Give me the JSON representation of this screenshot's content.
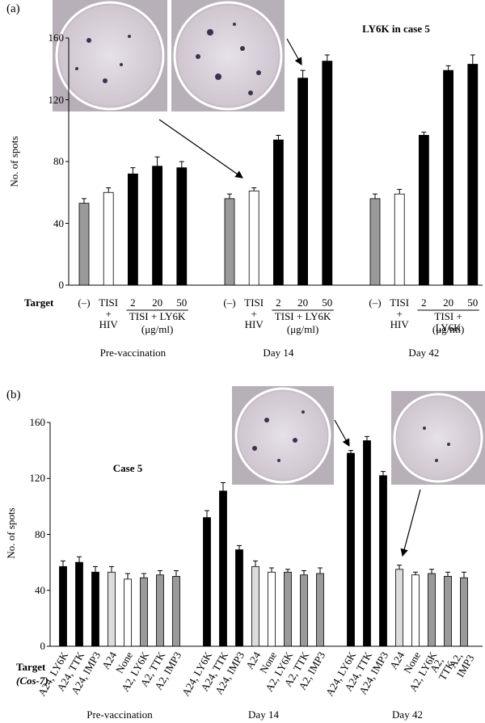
{
  "chart_data": [
    {
      "type": "bar",
      "panel_label": "(a)",
      "annotation": "LY6K in case 5",
      "y_label": "No. of spots",
      "x_label": "Target",
      "categories": [
        "(–)",
        "TISI\n+\nHIV",
        "2",
        "20",
        "50"
      ],
      "category_group_label": "TISI + LY6K",
      "category_unit": "(μg/ml)",
      "colors": [
        "#9a9a9a",
        "#ffffff",
        "#000000",
        "#000000",
        "#000000"
      ],
      "groups": [
        {
          "name": "Pre-vaccination",
          "values": [
            53,
            60,
            72,
            77,
            76
          ],
          "errors": [
            3,
            3,
            4,
            6,
            4
          ]
        },
        {
          "name": "Day 14",
          "values": [
            56,
            61,
            94,
            134,
            145
          ],
          "errors": [
            3,
            2,
            3,
            5,
            4
          ]
        },
        {
          "name": "Day 42",
          "values": [
            56,
            59,
            97,
            139,
            143
          ],
          "errors": [
            3,
            3,
            2,
            3,
            6
          ]
        }
      ],
      "ylim": [
        0,
        160
      ],
      "yticks": [
        0,
        40,
        80,
        120,
        160
      ]
    },
    {
      "type": "bar",
      "panel_label": "(b)",
      "annotation": "Case 5",
      "y_label": "No. of spots",
      "x_label": "Target",
      "x_label_sub": "(Cos-7)",
      "categories": [
        "A24, LY6K",
        "A24, TTK",
        "A24, IMP3",
        "A24",
        "None",
        "A2, LY6K",
        "A2, TTK",
        "A2, IMP3"
      ],
      "colors": [
        "#000000",
        "#000000",
        "#000000",
        "#dcdcdc",
        "#ffffff",
        "#9a9a9a",
        "#9a9a9a",
        "#9a9a9a"
      ],
      "groups": [
        {
          "name": "Pre-vaccination",
          "values": [
            57,
            60,
            53,
            53,
            48,
            49,
            51,
            50
          ],
          "errors": [
            4,
            4,
            4,
            4,
            4,
            3,
            3,
            4
          ]
        },
        {
          "name": "Day 14",
          "values": [
            92,
            111,
            69,
            57,
            53,
            53,
            51,
            52
          ],
          "errors": [
            5,
            6,
            3,
            4,
            3,
            2,
            3,
            4
          ]
        },
        {
          "name": "Day 42",
          "values": [
            138,
            147,
            122,
            55,
            51,
            52,
            50,
            49
          ],
          "errors": [
            2,
            3,
            3,
            3,
            2,
            3,
            3,
            4
          ]
        }
      ],
      "ylim": [
        0,
        160
      ],
      "yticks": [
        0,
        40,
        80,
        120,
        160
      ]
    }
  ]
}
